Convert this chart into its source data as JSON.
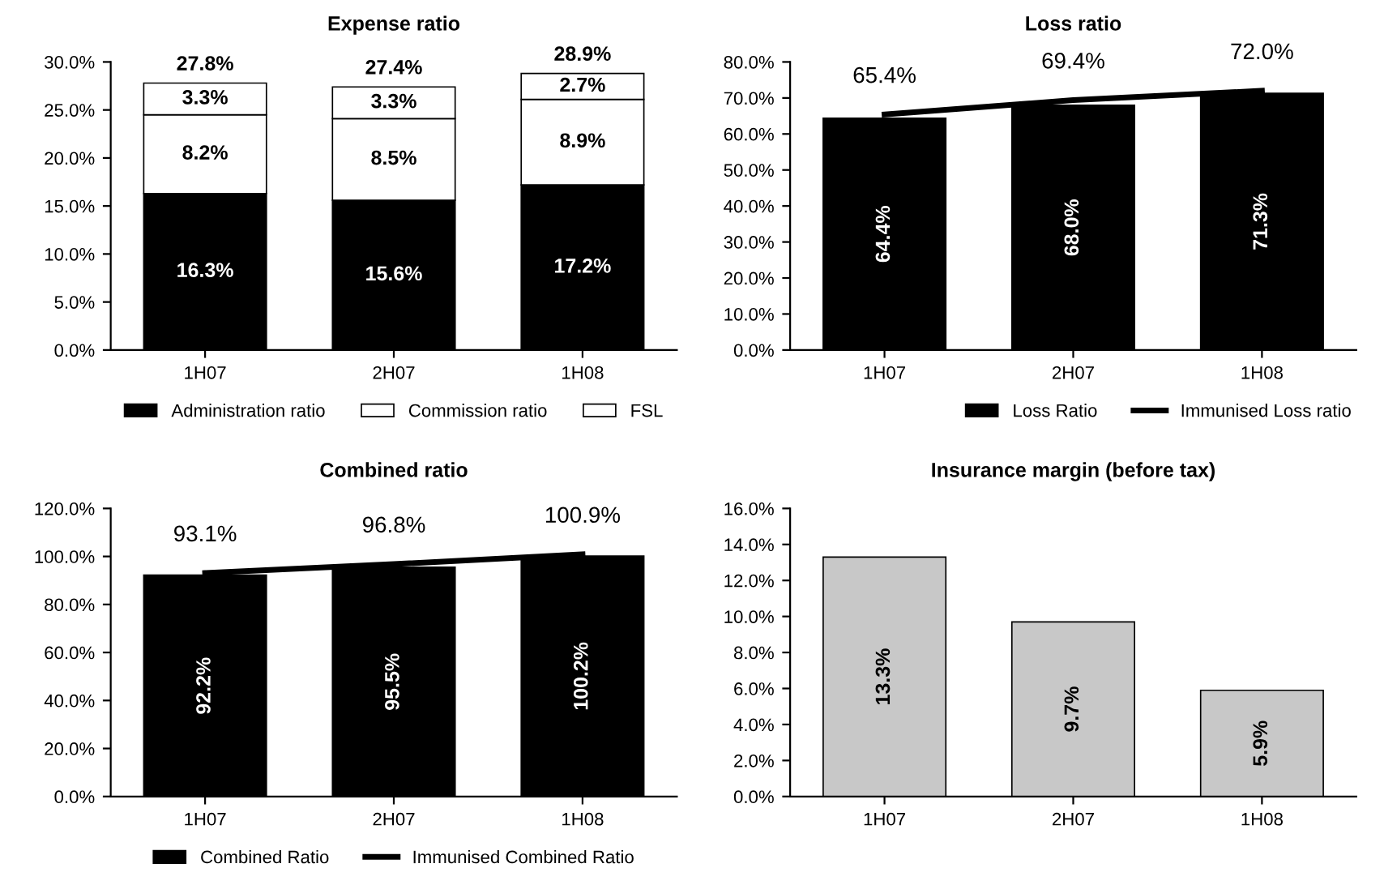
{
  "chart_data": [
    {
      "type": "bar",
      "title": "Expense ratio",
      "categories": [
        "1H07",
        "2H07",
        "1H08"
      ],
      "stacked": true,
      "legend": "bottom",
      "series": [
        {
          "name": "Administration ratio",
          "color": "#000000",
          "values": [
            16.3,
            15.6,
            17.2
          ],
          "value_labels": [
            "16.3%",
            "15.6%",
            "17.2%"
          ]
        },
        {
          "name": "Commission ratio",
          "color": "#ffffff",
          "values": [
            8.2,
            8.5,
            8.9
          ],
          "value_labels": [
            "8.2%",
            "8.5%",
            "8.9%"
          ]
        },
        {
          "name": "FSL",
          "color": "#ffffff",
          "values": [
            3.3,
            3.3,
            2.7
          ],
          "value_labels": [
            "3.3%",
            "3.3%",
            "2.7%"
          ]
        }
      ],
      "totals": [
        "27.8%",
        "27.4%",
        "28.9%"
      ],
      "ylim": [
        0,
        30
      ],
      "yticks": [
        {
          "value": 0,
          "label": "0.0%"
        },
        {
          "value": 5,
          "label": "5.0%"
        },
        {
          "value": 10,
          "label": "10.0%"
        },
        {
          "value": 15,
          "label": "15.0%"
        },
        {
          "value": 20,
          "label": "20.0%"
        },
        {
          "value": 25,
          "label": "25.0%"
        },
        {
          "value": 30,
          "label": "30.0%"
        }
      ]
    },
    {
      "type": "bar",
      "title": "Loss ratio",
      "categories": [
        "1H07",
        "2H07",
        "1H08"
      ],
      "legend": "bottom right",
      "series": [
        {
          "name": "Loss Ratio",
          "color": "#000000",
          "values": [
            64.4,
            68.0,
            71.3
          ],
          "value_labels": [
            "64.4%",
            "68.0%",
            "71.3%"
          ]
        },
        {
          "name": "Immunised Loss ratio",
          "type": "line",
          "color": "#000000",
          "values": [
            65.4,
            69.4,
            72.0
          ],
          "value_labels": [
            "65.4%",
            "69.4%",
            "72.0%"
          ]
        }
      ],
      "ylim": [
        0,
        80
      ],
      "yticks": [
        {
          "value": 0,
          "label": "0.0%"
        },
        {
          "value": 10,
          "label": "10.0%"
        },
        {
          "value": 20,
          "label": "20.0%"
        },
        {
          "value": 30,
          "label": "30.0%"
        },
        {
          "value": 40,
          "label": "40.0%"
        },
        {
          "value": 50,
          "label": "50.0%"
        },
        {
          "value": 60,
          "label": "60.0%"
        },
        {
          "value": 70,
          "label": "70.0%"
        },
        {
          "value": 80,
          "label": "80.0%"
        }
      ]
    },
    {
      "type": "bar",
      "title": "Combined ratio",
      "categories": [
        "1H07",
        "2H07",
        "1H08"
      ],
      "legend": "bottom",
      "series": [
        {
          "name": "Combined Ratio",
          "color": "#000000",
          "values": [
            92.2,
            95.5,
            100.2
          ],
          "value_labels": [
            "92.2%",
            "95.5%",
            "100.2%"
          ]
        },
        {
          "name": "Immunised Combined Ratio",
          "type": "line",
          "color": "#000000",
          "values": [
            93.1,
            96.8,
            100.9
          ],
          "value_labels": [
            "93.1%",
            "96.8%",
            "100.9%"
          ]
        }
      ],
      "ylim": [
        0,
        120
      ],
      "yticks": [
        {
          "value": 0,
          "label": "0.0%"
        },
        {
          "value": 20,
          "label": "20.0%"
        },
        {
          "value": 40,
          "label": "40.0%"
        },
        {
          "value": 60,
          "label": "60.0%"
        },
        {
          "value": 80,
          "label": "80.0%"
        },
        {
          "value": 100,
          "label": "100.0%"
        },
        {
          "value": 120,
          "label": "120.0%"
        }
      ]
    },
    {
      "type": "bar",
      "title": "Insurance margin (before tax)",
      "categories": [
        "1H07",
        "2H07",
        "1H08"
      ],
      "series": [
        {
          "color": "#c8c8c8",
          "values": [
            13.3,
            9.7,
            5.9
          ],
          "value_labels": [
            "13.3%",
            "9.7%",
            "5.9%"
          ]
        }
      ],
      "ylim": [
        0,
        16
      ],
      "yticks": [
        {
          "value": 0,
          "label": "0.0%"
        },
        {
          "value": 2,
          "label": "2.0%"
        },
        {
          "value": 4,
          "label": "4.0%"
        },
        {
          "value": 6,
          "label": "6.0%"
        },
        {
          "value": 8,
          "label": "8.0%"
        },
        {
          "value": 10,
          "label": "10.0%"
        },
        {
          "value": 12,
          "label": "12.0%"
        },
        {
          "value": 14,
          "label": "14.0%"
        },
        {
          "value": 16,
          "label": "16.0%"
        }
      ]
    }
  ]
}
